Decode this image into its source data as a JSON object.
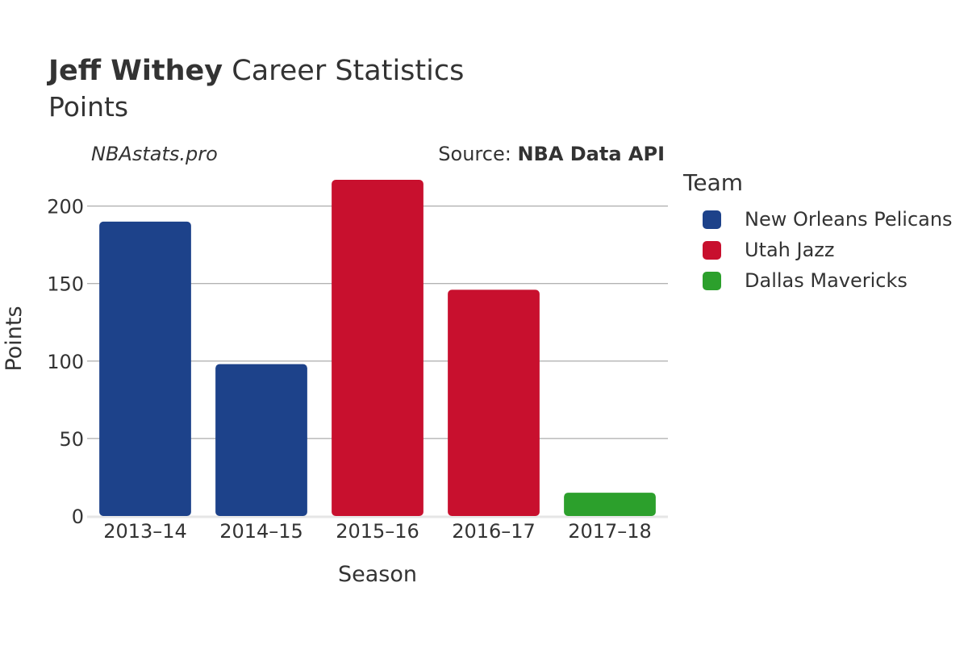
{
  "header": {
    "title_bold": "Jeff Withey",
    "title_rest": "Career Statistics",
    "subtitle": "Points",
    "watermark": "NBAstats.pro",
    "source_prefix": "Source:",
    "source_name": "NBA Data API"
  },
  "legend": {
    "title": "Team",
    "items": [
      {
        "label": "New Orleans Pelicans",
        "color": "#1d428a"
      },
      {
        "label": "Utah Jazz",
        "color": "#c8102e"
      },
      {
        "label": "Dallas Mavericks",
        "color": "#2ca02c"
      }
    ]
  },
  "chart_data": {
    "type": "bar",
    "xlabel": "Season",
    "ylabel": "Points",
    "ylim": [
      0,
      230
    ],
    "yticks": [
      0,
      50,
      100,
      150,
      200
    ],
    "grid": true,
    "legend_position": "right",
    "categories": [
      "2013–14",
      "2014–15",
      "2015–16",
      "2016–17",
      "2017–18"
    ],
    "values": [
      190,
      98,
      217,
      146,
      15
    ],
    "teams": [
      "New Orleans Pelicans",
      "New Orleans Pelicans",
      "Utah Jazz",
      "Utah Jazz",
      "Dallas Mavericks"
    ]
  }
}
